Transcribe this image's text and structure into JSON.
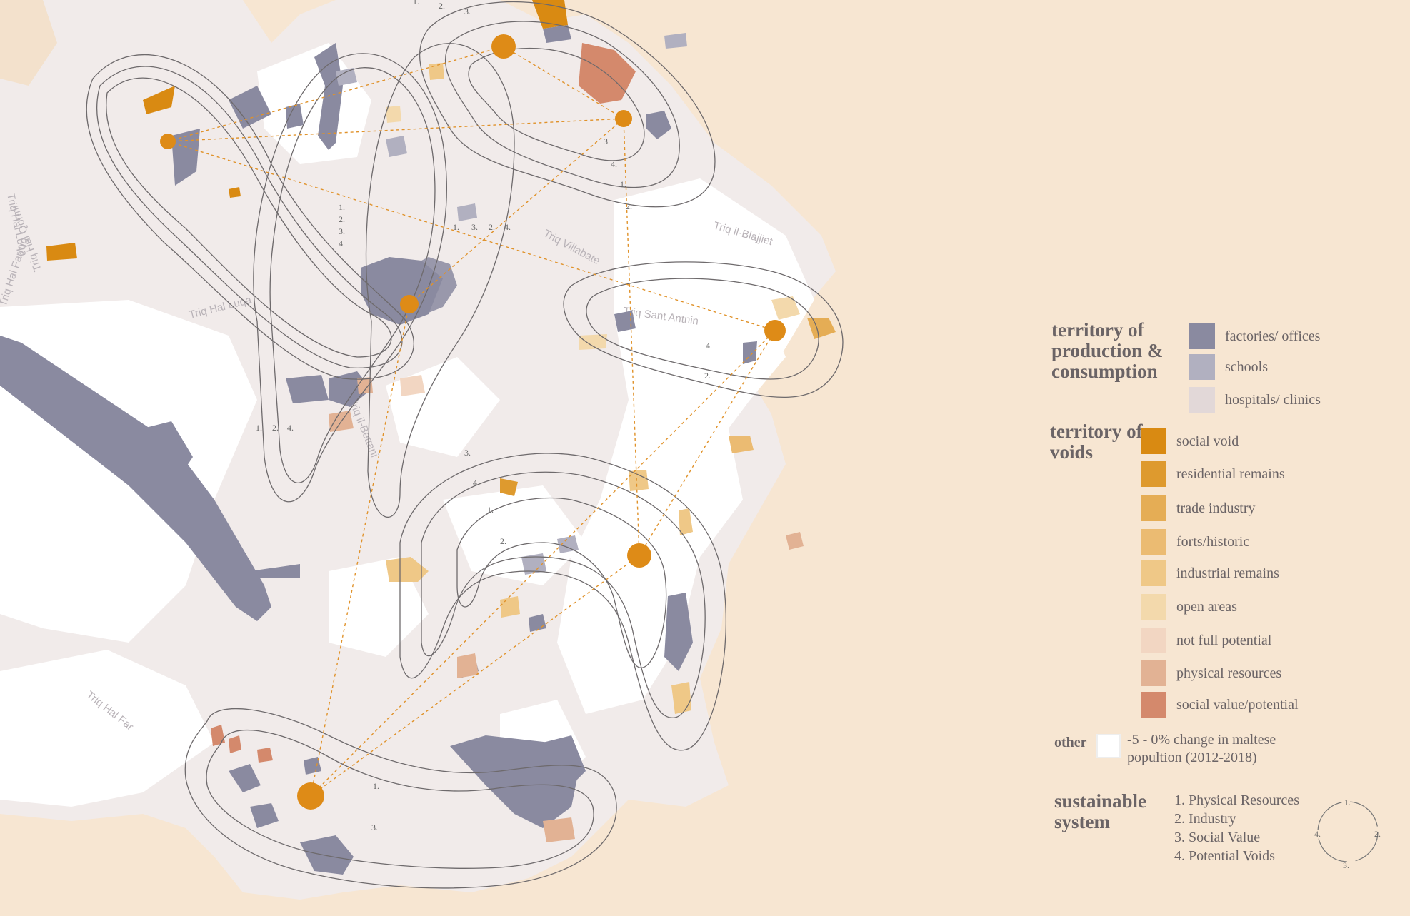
{
  "roads": [
    "Triq Hal Luqa",
    "Triq Hal Farrug",
    "Triq Hal Qormi",
    "Triq Hal Luqa",
    "Triq Villabate",
    "Triq il-Blajjiet",
    "Triq Sant Antnin",
    "Triq Hal Far",
    "Triq il-Bettani"
  ],
  "contour_labels": {
    "west_a": [
      "1.",
      "2.",
      "3.",
      "4."
    ],
    "west_b": [
      "1.",
      "2.",
      "4."
    ],
    "mid": [
      "1.",
      "3.",
      "2.",
      "4."
    ],
    "north_top": [
      "1.",
      "2.",
      "3."
    ],
    "ne": [
      "3.",
      "4.",
      "1.",
      "2."
    ],
    "east": [
      "4.",
      "2."
    ],
    "south_mid": [
      "3.",
      "4.",
      "1.",
      "2."
    ],
    "south": [
      "1.",
      "3."
    ]
  },
  "legend": {
    "production": {
      "title": "territory of production & consumption",
      "items": [
        {
          "label": "factories/ offices",
          "color": "#8a8aa0"
        },
        {
          "label": "schools",
          "color": "#b1b0c0"
        },
        {
          "label": "hospitals/ clinics",
          "color": "#e2d8d8"
        }
      ]
    },
    "voids": {
      "title": "territory of voids",
      "items": [
        {
          "label": "social void",
          "color": "#d98a12"
        },
        {
          "label": "residential remains",
          "color": "#de9a2e"
        },
        {
          "label": "trade industry",
          "color": "#e5ad55"
        },
        {
          "label": "forts/historic",
          "color": "#ebbb72"
        },
        {
          "label": "industrial remains",
          "color": "#efc887"
        },
        {
          "label": "open areas",
          "color": "#f3d9ac"
        },
        {
          "label": "not full potential",
          "color": "#f2d6c2"
        },
        {
          "label": "physical resources",
          "color": "#e2b294"
        },
        {
          "label": "social value/potential",
          "color": "#d4896c"
        }
      ]
    },
    "other": {
      "title": "other",
      "text": "-5 - 0% change in maltese popultion (2012-2018)"
    },
    "system": {
      "title": "sustainable system",
      "items": [
        "1. Physical Resources",
        "2. Industry",
        "3. Social Value",
        "4. Potential Voids"
      ],
      "cycle": [
        "1.",
        "2.",
        "3.",
        "4."
      ]
    }
  }
}
